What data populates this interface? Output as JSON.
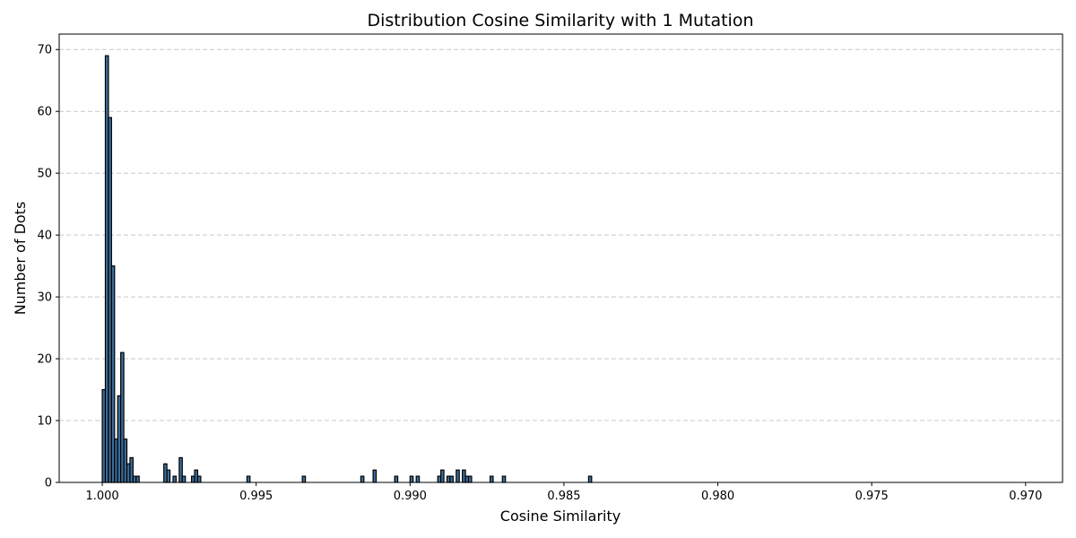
{
  "chart_data": {
    "type": "bar",
    "title": "Distribution Cosine Similarity with 1 Mutation",
    "xlabel": "Cosine Similarity",
    "ylabel": "Number of Dots",
    "x_reversed": true,
    "xlim": [
      1.0014,
      0.9688
    ],
    "ylim": [
      0,
      72.5
    ],
    "xticks": [
      1.0,
      0.995,
      0.99,
      0.985,
      0.98,
      0.975,
      0.97
    ],
    "xtick_labels": [
      "1.000",
      "0.995",
      "0.990",
      "0.985",
      "0.980",
      "0.975",
      "0.970"
    ],
    "yticks": [
      0,
      10,
      20,
      30,
      40,
      50,
      60,
      70
    ],
    "grid": "y-dashed",
    "bin_width": 0.0001,
    "bar_color": "#3c6e9b",
    "edge_color": "#000000",
    "bins": [
      {
        "x": 0.99995,
        "count": 15
      },
      {
        "x": 0.99985,
        "count": 69
      },
      {
        "x": 0.99975,
        "count": 59
      },
      {
        "x": 0.99965,
        "count": 35
      },
      {
        "x": 0.99955,
        "count": 7
      },
      {
        "x": 0.99945,
        "count": 14
      },
      {
        "x": 0.99935,
        "count": 21
      },
      {
        "x": 0.99925,
        "count": 7
      },
      {
        "x": 0.99915,
        "count": 3
      },
      {
        "x": 0.99905,
        "count": 4
      },
      {
        "x": 0.99895,
        "count": 1
      },
      {
        "x": 0.99885,
        "count": 1
      },
      {
        "x": 0.99795,
        "count": 3
      },
      {
        "x": 0.99785,
        "count": 2
      },
      {
        "x": 0.99765,
        "count": 1
      },
      {
        "x": 0.99745,
        "count": 4
      },
      {
        "x": 0.99735,
        "count": 1
      },
      {
        "x": 0.99705,
        "count": 1
      },
      {
        "x": 0.99695,
        "count": 2
      },
      {
        "x": 0.99685,
        "count": 1
      },
      {
        "x": 0.99525,
        "count": 1
      },
      {
        "x": 0.99345,
        "count": 1
      },
      {
        "x": 0.99155,
        "count": 1
      },
      {
        "x": 0.99115,
        "count": 2
      },
      {
        "x": 0.99045,
        "count": 1
      },
      {
        "x": 0.98995,
        "count": 1
      },
      {
        "x": 0.98975,
        "count": 1
      },
      {
        "x": 0.98905,
        "count": 1
      },
      {
        "x": 0.98895,
        "count": 2
      },
      {
        "x": 0.98875,
        "count": 1
      },
      {
        "x": 0.98865,
        "count": 1
      },
      {
        "x": 0.98845,
        "count": 2
      },
      {
        "x": 0.98825,
        "count": 2
      },
      {
        "x": 0.98815,
        "count": 1
      },
      {
        "x": 0.98805,
        "count": 1
      },
      {
        "x": 0.98735,
        "count": 1
      },
      {
        "x": 0.98695,
        "count": 1
      },
      {
        "x": 0.98415,
        "count": 1
      }
    ]
  }
}
